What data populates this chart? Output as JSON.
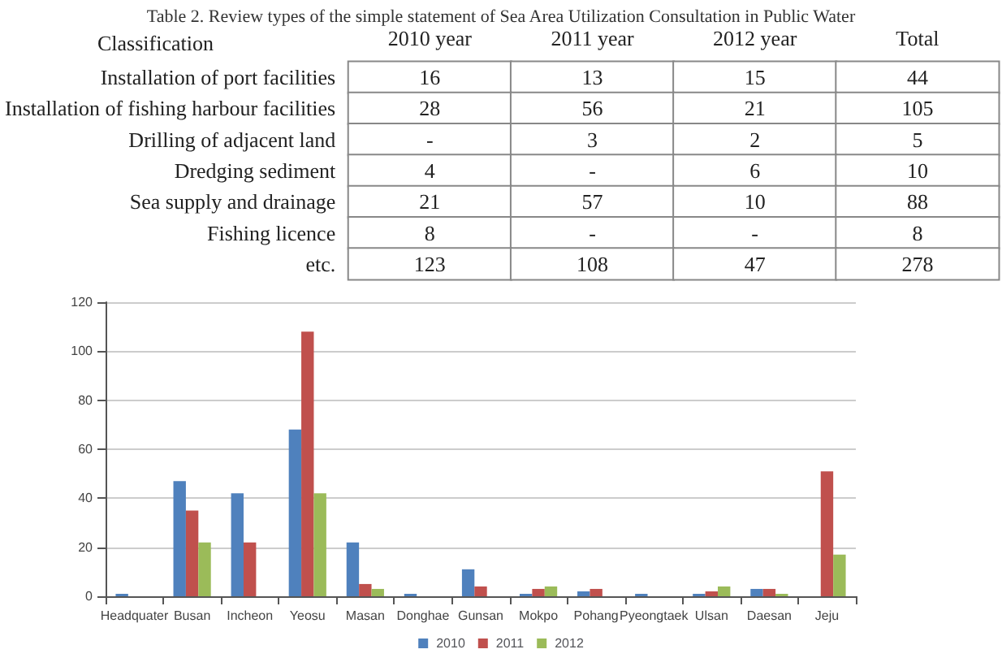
{
  "chart_data": [
    {
      "type": "other",
      "title": "Table 2. Review types of the simple statement of Sea Area Utilization Consultation in Public Water",
      "ylabel": "Classification",
      "categories": [
        "2010 year",
        "2011 year",
        "2012 year",
        "Total"
      ],
      "y_categories": [
        "Installation of port facilities",
        "Installation of fishing harbour facilities",
        "Drilling of adjacent land",
        "Dredging sediment",
        "Sea supply and drainage",
        "Fishing licence",
        "etc."
      ],
      "cell_labels": [
        [
          "16",
          "13",
          "15",
          "44"
        ],
        [
          "28",
          "56",
          "21",
          "105"
        ],
        [
          "-",
          "3",
          "2",
          "5"
        ],
        [
          "4",
          "-",
          "6",
          "10"
        ],
        [
          "21",
          "57",
          "10",
          "88"
        ],
        [
          "8",
          "-",
          "-",
          "8"
        ],
        [
          "123",
          "108",
          "47",
          "278"
        ]
      ]
    },
    {
      "type": "bar",
      "categories": [
        "Headquater",
        "Busan",
        "Incheon",
        "Yeosu",
        "Masan",
        "Donghae",
        "Gunsan",
        "Mokpo",
        "Pohang",
        "Pyeongtaek",
        "Ulsan",
        "Daesan",
        "Jeju"
      ],
      "series": [
        {
          "name": "2010",
          "color": "#4f81bd",
          "values": [
            1,
            47,
            42,
            68,
            22,
            1,
            11,
            1,
            2,
            1,
            1,
            3,
            0
          ]
        },
        {
          "name": "2011",
          "color": "#c0504d",
          "values": [
            0,
            35,
            22,
            108,
            5,
            0,
            4,
            3,
            3,
            0,
            2,
            3,
            51
          ]
        },
        {
          "name": "2012",
          "color": "#9bbb59",
          "values": [
            0,
            22,
            0,
            42,
            3,
            0,
            0,
            4,
            0,
            0,
            4,
            1,
            17
          ]
        }
      ],
      "ylim": [
        0,
        120
      ],
      "yticks": [
        0,
        20,
        40,
        60,
        80,
        100,
        120
      ],
      "grid": "y",
      "legend": "bottom"
    }
  ]
}
